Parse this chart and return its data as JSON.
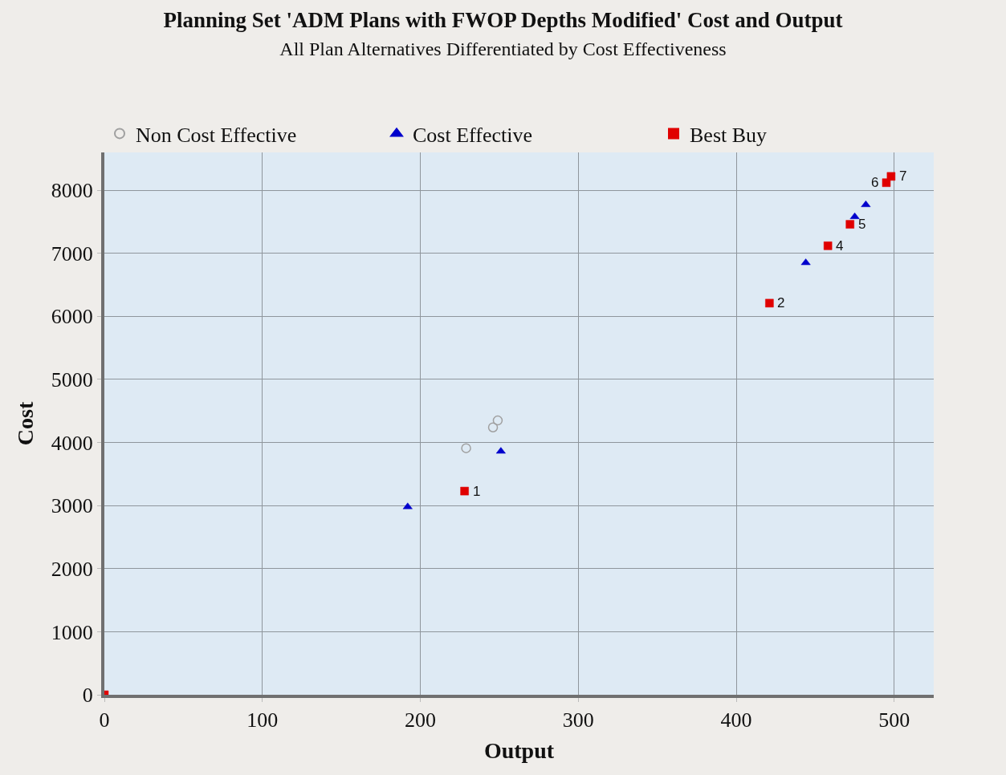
{
  "chart_data": {
    "type": "scatter",
    "title": "Planning Set 'ADM Plans with FWOP Depths Modified' Cost and Output",
    "subtitle": "All Plan Alternatives Differentiated by Cost Effectiveness",
    "xlabel": "Output",
    "ylabel": "Cost",
    "series": [
      {
        "name": "Non Cost Effective",
        "color": "#a0a0a0",
        "marker": "circle-open",
        "x": [
          229,
          246,
          249
        ],
        "values": [
          3910,
          4240,
          4350
        ]
      },
      {
        "name": "Cost Effective",
        "color": "#0000cc",
        "marker": "triangle",
        "x": [
          192,
          251,
          444,
          475,
          482
        ],
        "values": [
          2980,
          3860,
          6850,
          7580,
          7770
        ]
      },
      {
        "name": "Best Buy",
        "color": "#e00000",
        "marker": "square",
        "x": [
          0,
          228,
          421,
          458,
          472,
          495,
          498
        ],
        "values": [
          0,
          3230,
          6210,
          7120,
          7460,
          8120,
          8220
        ]
      }
    ],
    "annotations": [
      {
        "text": "1",
        "x": 228,
        "y": 3230
      },
      {
        "text": "2",
        "x": 421,
        "y": 6210
      },
      {
        "text": "4",
        "x": 458,
        "y": 7120
      },
      {
        "text": "5",
        "x": 472,
        "y": 7460
      },
      {
        "text": "6",
        "x": 495,
        "y": 8120
      },
      {
        "text": "7",
        "x": 498,
        "y": 8220
      }
    ],
    "xlim": [
      0,
      525
    ],
    "xticks": [
      0,
      100,
      200,
      300,
      400,
      500
    ],
    "ylim": [
      0,
      8600
    ],
    "yticks": [
      0,
      1000,
      2000,
      3000,
      4000,
      5000,
      6000,
      7000,
      8000
    ],
    "grid": true,
    "legend": "top"
  }
}
